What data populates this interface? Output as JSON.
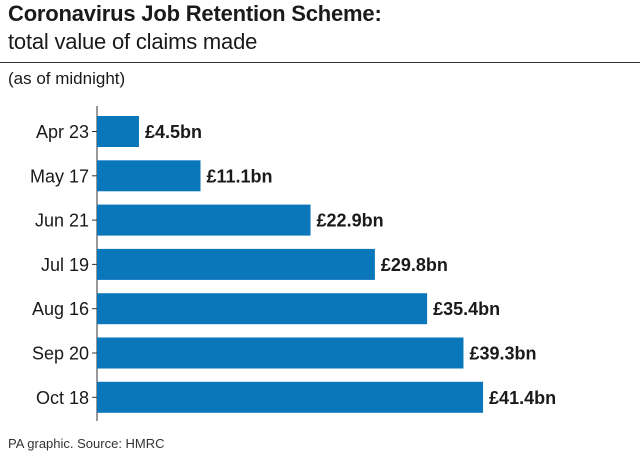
{
  "header": {
    "title": "Coronavirus Job Retention Scheme:",
    "subtitle": "total value of claims made",
    "note": "(as of midnight)"
  },
  "footer": {
    "source": "PA graphic. Source: HMRC"
  },
  "colors": {
    "bar": "#0a77bb",
    "text": "#1a1a1a",
    "axis": "#333333"
  },
  "chart_data": {
    "type": "bar",
    "orientation": "horizontal",
    "categories": [
      "Apr 23",
      "May 17",
      "Jun 21",
      "Jul 19",
      "Aug 16",
      "Sep 20",
      "Oct 18"
    ],
    "values": [
      4.5,
      11.1,
      22.9,
      29.8,
      35.4,
      39.3,
      41.4
    ],
    "value_labels": [
      "£4.5bn",
      "£11.1bn",
      "£22.9bn",
      "£29.8bn",
      "£35.4bn",
      "£39.3bn",
      "£41.4bn"
    ],
    "unit": "£bn",
    "grid": false,
    "legend": "none"
  }
}
